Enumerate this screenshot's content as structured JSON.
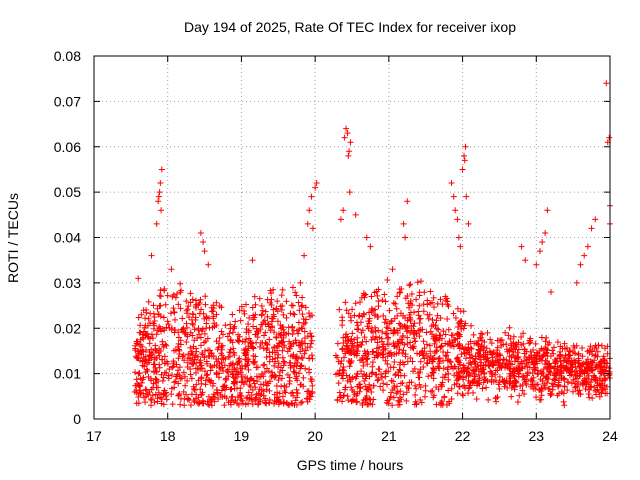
{
  "chart_data": {
    "type": "scatter",
    "title": "Day 194 of 2025, Rate Of TEC Index for receiver ixop",
    "xlabel": "GPS time / hours",
    "ylabel": "ROTI / TECUs",
    "xlim": [
      17,
      24
    ],
    "ylim": [
      0,
      0.08
    ],
    "grid": true,
    "legend": "none",
    "marker": "+",
    "x_ticks": [
      "17",
      "18",
      "19",
      "20",
      "21",
      "22",
      "23",
      "24"
    ],
    "y_ticks": [
      "0",
      "0.01",
      "0.02",
      "0.03",
      "0.04",
      "0.05",
      "0.06",
      "0.07",
      "0.08"
    ],
    "colors": {
      "points": "#ff0000",
      "grid": "#a0a0a0",
      "axis": "#000000"
    },
    "series": [
      {
        "name": "ROTI",
        "points": [
          [
            17.85,
            0.043
          ],
          [
            17.87,
            0.048
          ],
          [
            17.89,
            0.05
          ],
          [
            17.9,
            0.052
          ],
          [
            17.92,
            0.055
          ],
          [
            17.91,
            0.046
          ],
          [
            17.88,
            0.049
          ],
          [
            17.6,
            0.031
          ],
          [
            17.78,
            0.036
          ],
          [
            18.05,
            0.033
          ],
          [
            18.45,
            0.041
          ],
          [
            18.48,
            0.039
          ],
          [
            18.5,
            0.037
          ],
          [
            18.55,
            0.034
          ],
          [
            19.15,
            0.035
          ],
          [
            19.8,
            0.03
          ],
          [
            19.85,
            0.036
          ],
          [
            19.9,
            0.043
          ],
          [
            19.92,
            0.046
          ],
          [
            19.95,
            0.049
          ],
          [
            20.0,
            0.051
          ],
          [
            20.02,
            0.052
          ],
          [
            19.97,
            0.042
          ],
          [
            20.35,
            0.044
          ],
          [
            20.38,
            0.046
          ],
          [
            20.4,
            0.062
          ],
          [
            20.42,
            0.064
          ],
          [
            20.44,
            0.063
          ],
          [
            20.45,
            0.058
          ],
          [
            20.46,
            0.059
          ],
          [
            20.48,
            0.061
          ],
          [
            20.47,
            0.05
          ],
          [
            20.55,
            0.045
          ],
          [
            20.7,
            0.04
          ],
          [
            20.75,
            0.038
          ],
          [
            21.05,
            0.033
          ],
          [
            21.25,
            0.048
          ],
          [
            21.22,
            0.04
          ],
          [
            21.2,
            0.043
          ],
          [
            21.85,
            0.052
          ],
          [
            21.88,
            0.049
          ],
          [
            21.9,
            0.046
          ],
          [
            21.93,
            0.044
          ],
          [
            21.95,
            0.04
          ],
          [
            21.97,
            0.038
          ],
          [
            22.0,
            0.055
          ],
          [
            22.02,
            0.058
          ],
          [
            22.04,
            0.06
          ],
          [
            22.03,
            0.057
          ],
          [
            22.05,
            0.049
          ],
          [
            22.08,
            0.043
          ],
          [
            22.8,
            0.038
          ],
          [
            22.85,
            0.035
          ],
          [
            23.0,
            0.034
          ],
          [
            23.05,
            0.037
          ],
          [
            23.08,
            0.039
          ],
          [
            23.15,
            0.046
          ],
          [
            23.12,
            0.041
          ],
          [
            23.2,
            0.028
          ],
          [
            23.55,
            0.03
          ],
          [
            23.6,
            0.034
          ],
          [
            23.65,
            0.036
          ],
          [
            23.7,
            0.038
          ],
          [
            23.75,
            0.042
          ],
          [
            23.8,
            0.044
          ],
          [
            23.95,
            0.074
          ],
          [
            23.97,
            0.061
          ],
          [
            23.99,
            0.062
          ],
          [
            24.0,
            0.047
          ],
          [
            24.0,
            0.043
          ]
        ],
        "dense_band": {
          "x_start": 17.55,
          "x_end": 24.0,
          "gap": [
            19.97,
            20.28
          ],
          "min_roti": 0.003,
          "envelope": [
            [
              17.55,
              0.011,
              0.021
            ],
            [
              17.9,
              0.012,
              0.028
            ],
            [
              18.3,
              0.012,
              0.027
            ],
            [
              18.7,
              0.011,
              0.024
            ],
            [
              19.0,
              0.011,
              0.025
            ],
            [
              19.4,
              0.012,
              0.028
            ],
            [
              19.8,
              0.012,
              0.029
            ],
            [
              19.97,
              0.012,
              0.025
            ],
            [
              20.3,
              0.012,
              0.024
            ],
            [
              20.7,
              0.013,
              0.028
            ],
            [
              21.0,
              0.014,
              0.03
            ],
            [
              21.4,
              0.014,
              0.03
            ],
            [
              21.8,
              0.013,
              0.027
            ],
            [
              22.2,
              0.012,
              0.019
            ],
            [
              22.6,
              0.011,
              0.018
            ],
            [
              23.0,
              0.011,
              0.018
            ],
            [
              23.5,
              0.01,
              0.016
            ],
            [
              24.0,
              0.01,
              0.016
            ]
          ]
        }
      }
    ]
  }
}
